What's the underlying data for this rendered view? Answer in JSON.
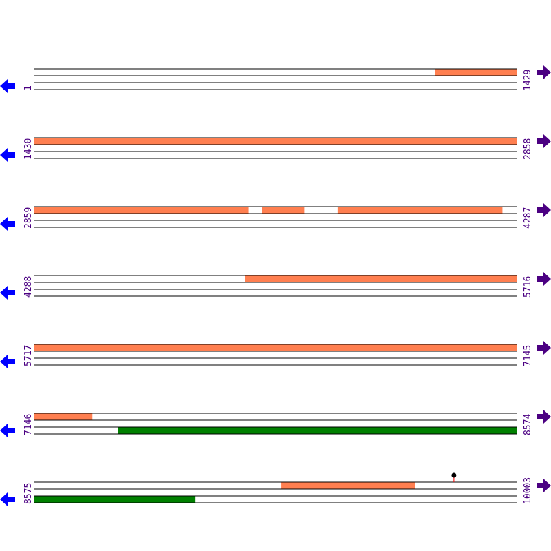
{
  "colors": {
    "feature_orange": "#ff7f50",
    "feature_green": "#008000",
    "line": "#000000",
    "label": "#4b0082",
    "reverse_arrow": "#0000ff",
    "forward_arrow": "#4b0082",
    "marker_stem": "#ff0000"
  },
  "bp_per_row": 1429,
  "rows": [
    {
      "start": "1",
      "end": "1429",
      "s": 1,
      "features": [
        {
          "track": 0,
          "from": 1189,
          "to": 1429,
          "color": "#ff7f50"
        }
      ]
    },
    {
      "start": "1430",
      "end": "2858",
      "s": 1430,
      "features": [
        {
          "track": 0,
          "from": 1430,
          "to": 2858,
          "color": "#ff7f50"
        }
      ]
    },
    {
      "start": "2859",
      "end": "4287",
      "s": 2859,
      "features": [
        {
          "track": 0,
          "from": 2859,
          "to": 3492,
          "color": "#ff7f50"
        },
        {
          "track": 0,
          "from": 3533,
          "to": 3659,
          "color": "#ff7f50"
        },
        {
          "track": 0,
          "from": 3759,
          "to": 4245,
          "color": "#ff7f50"
        }
      ]
    },
    {
      "start": "4288",
      "end": "5716",
      "s": 4288,
      "features": [
        {
          "track": 0,
          "from": 4911,
          "to": 5716,
          "color": "#ff7f50"
        }
      ]
    },
    {
      "start": "5717",
      "end": "7145",
      "s": 5717,
      "features": [
        {
          "track": 0,
          "from": 5717,
          "to": 7145,
          "color": "#ff7f50"
        }
      ]
    },
    {
      "start": "7146",
      "end": "8574",
      "s": 7146,
      "features": [
        {
          "track": 0,
          "from": 7146,
          "to": 7317,
          "color": "#ff7f50"
        },
        {
          "track": 2,
          "from": 7393,
          "to": 8574,
          "color": "#008000"
        }
      ]
    },
    {
      "start": "8575",
      "end": "10003",
      "s": 8575,
      "features": [
        {
          "track": 0,
          "from": 9306,
          "to": 9702,
          "color": "#ff7f50"
        },
        {
          "track": 2,
          "from": 8575,
          "to": 9050,
          "color": "#008000"
        }
      ],
      "markers": [
        {
          "pos": 9818
        }
      ]
    }
  ]
}
